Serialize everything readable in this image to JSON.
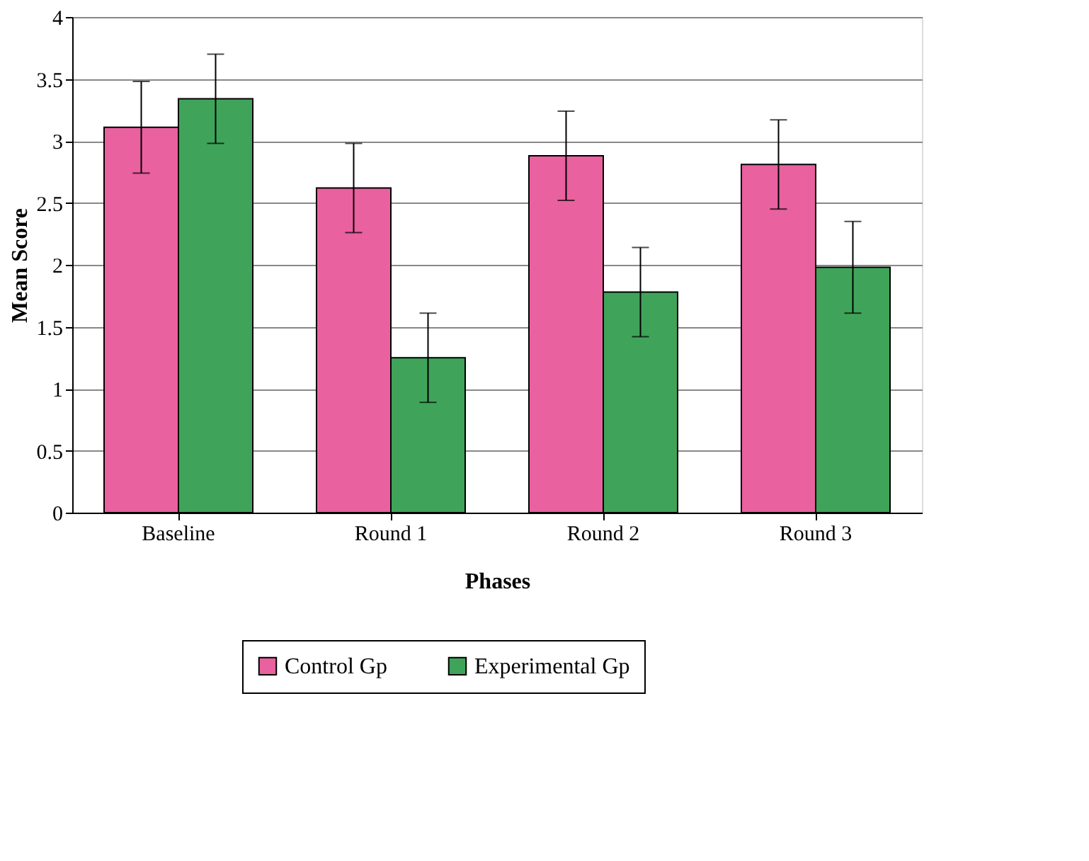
{
  "chart_data": {
    "type": "bar",
    "xlabel": "Phases",
    "ylabel": "Mean Score",
    "categories": [
      "Baseline",
      "Round 1",
      "Round 2",
      "Round 3"
    ],
    "series": [
      {
        "name": "Control Gp",
        "color": "#e9619f",
        "values": [
          3.11,
          2.62,
          2.88,
          2.81
        ],
        "errors": [
          0.37,
          0.36,
          0.36,
          0.36
        ]
      },
      {
        "name": "Experimental Gp",
        "color": "#3fa45a",
        "values": [
          3.34,
          1.25,
          1.78,
          1.98
        ],
        "errors": [
          0.36,
          0.36,
          0.36,
          0.37
        ]
      }
    ],
    "ylim": [
      0,
      4
    ],
    "yticks": [
      0,
      0.5,
      1,
      1.5,
      2,
      2.5,
      3,
      3.5,
      4
    ],
    "grid": "y",
    "legend": "bottom"
  }
}
